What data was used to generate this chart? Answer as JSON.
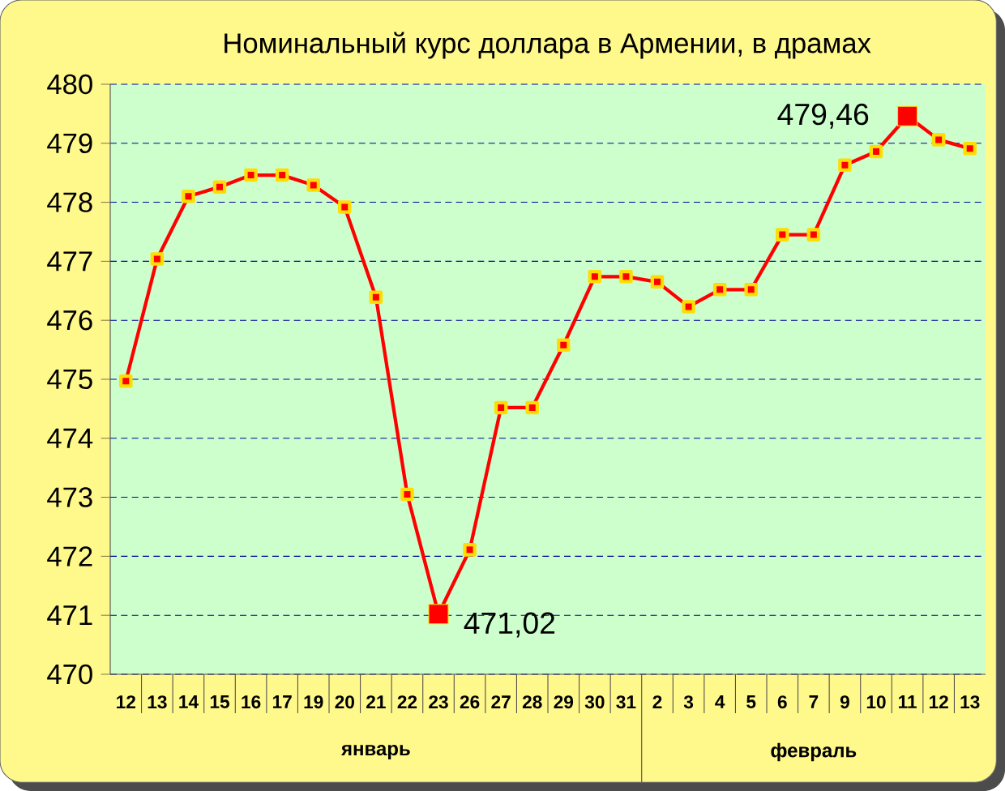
{
  "chart_data": {
    "type": "line",
    "title": "Номинальный курс доллара в Армении, в драмах",
    "categories": [
      "12",
      "13",
      "14",
      "15",
      "16",
      "17",
      "19",
      "20",
      "21",
      "22",
      "23",
      "26",
      "27",
      "28",
      "29",
      "30",
      "31",
      "2",
      "3",
      "4",
      "5",
      "6",
      "7",
      "9",
      "10",
      "11",
      "12",
      "13"
    ],
    "values": [
      474.97,
      477.04,
      478.1,
      478.26,
      478.46,
      478.46,
      478.29,
      477.92,
      476.39,
      473.05,
      471.02,
      472.11,
      474.52,
      474.52,
      475.58,
      476.74,
      476.74,
      476.65,
      476.23,
      476.52,
      476.52,
      477.45,
      477.45,
      478.63,
      478.86,
      479.46,
      479.06,
      478.91
    ],
    "value_labels": [
      null,
      null,
      null,
      null,
      null,
      null,
      null,
      null,
      null,
      null,
      "471,02",
      null,
      null,
      null,
      null,
      null,
      null,
      null,
      null,
      null,
      null,
      null,
      null,
      null,
      null,
      "479,46",
      null,
      null
    ],
    "color": "#ff0000",
    "marker": "square",
    "line_style": "solid",
    "grid": "y",
    "ylim": [
      470,
      480
    ],
    "yticks": [
      470,
      471,
      472,
      473,
      474,
      475,
      476,
      477,
      478,
      479,
      480
    ],
    "annotations": [
      "январь",
      "февраль"
    ]
  }
}
